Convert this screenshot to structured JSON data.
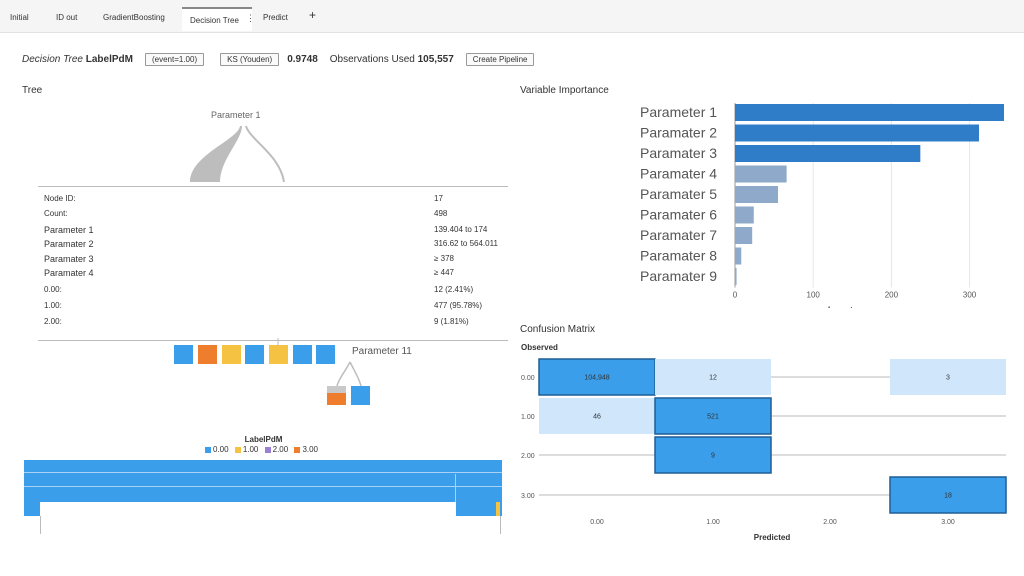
{
  "tabs": [
    "Initial",
    "ID out",
    "GradientBoosting",
    "Decision Tree",
    "Predict"
  ],
  "tab_menu_icon": "kebab-icon",
  "add_tab_label": "+",
  "header": {
    "model_prefix": "Decision Tree",
    "model_target": "LabelPdM",
    "event_pill": "(event=1.00)",
    "ks_pill": "KS (Youden)",
    "ks_value": "0.9748",
    "obs_label": "Observations Used",
    "obs_value": "105,557",
    "create_pipeline": "Create Pipeline"
  },
  "tree": {
    "title": "Tree",
    "top_node_label": "Parameter 1",
    "lower_node_label": "Parameter 11",
    "info": [
      {
        "key": "Node ID:",
        "value": "17"
      },
      {
        "key": "Count:",
        "value": "498"
      },
      {
        "key": "Parameter 1",
        "value": "139.404 to 174"
      },
      {
        "key": "Paramater 2",
        "value": "316.62 to 564.011"
      },
      {
        "key": "Paramater 3",
        "value": "≥ 378"
      },
      {
        "key": "Paramater 4",
        "value": "≥ 447"
      },
      {
        "key": "0.00:",
        "value": "12 (2.41%)"
      },
      {
        "key": "1.00:",
        "value": "477 (95.78%)"
      },
      {
        "key": "2.00:",
        "value": "9 (1.81%)"
      }
    ],
    "legend_title": "LabelPdM",
    "legend": [
      {
        "label": "0.00",
        "color": "#3a9eea"
      },
      {
        "label": "1.00",
        "color": "#f5c242"
      },
      {
        "label": "2.00",
        "color": "#9b7fd4"
      },
      {
        "label": "3.00",
        "color": "#ee7d2e"
      }
    ]
  },
  "variable_importance": {
    "title": "Variable Importance",
    "xlabel": "Importance",
    "ticks": [
      "0",
      "100",
      "200",
      "300"
    ],
    "xmax": 344,
    "bars": [
      {
        "label": "Parameter 1",
        "value": 344,
        "color": "#2f7cc9"
      },
      {
        "label": "Paramater 2",
        "value": 312,
        "color": "#2f7cc9"
      },
      {
        "label": "Paramater 3",
        "value": 237,
        "color": "#2f7cc9"
      },
      {
        "label": "Paramater 4",
        "value": 66,
        "color": "#8ea9c9"
      },
      {
        "label": "Paramater 5",
        "value": 55,
        "color": "#8ea9c9"
      },
      {
        "label": "Paramater 6",
        "value": 24,
        "color": "#8ea9c9"
      },
      {
        "label": "Paramater 7",
        "value": 22,
        "color": "#8ea9c9"
      },
      {
        "label": "Paramater 8",
        "value": 8,
        "color": "#8ea9c9"
      },
      {
        "label": "Paramater 9",
        "value": 2,
        "color": "#8ea9c9"
      }
    ]
  },
  "confusion_matrix": {
    "title": "Confusion Matrix",
    "ylabel": "Observed",
    "xlabel": "Predicted",
    "rows": [
      "0.00",
      "1.00",
      "2.00",
      "3.00"
    ],
    "cols": [
      "0.00",
      "1.00",
      "2.00",
      "3.00"
    ],
    "cells": [
      {
        "row": 0,
        "col": 0,
        "value": "104,948",
        "strong": true
      },
      {
        "row": 0,
        "col": 1,
        "value": "12",
        "strong": false
      },
      {
        "row": 0,
        "col": 3,
        "value": "3",
        "strong": false
      },
      {
        "row": 1,
        "col": 0,
        "value": "46",
        "strong": false
      },
      {
        "row": 1,
        "col": 1,
        "value": "521",
        "strong": true
      },
      {
        "row": 2,
        "col": 1,
        "value": "9",
        "strong": true
      },
      {
        "row": 3,
        "col": 3,
        "value": "18",
        "strong": true
      }
    ]
  }
}
